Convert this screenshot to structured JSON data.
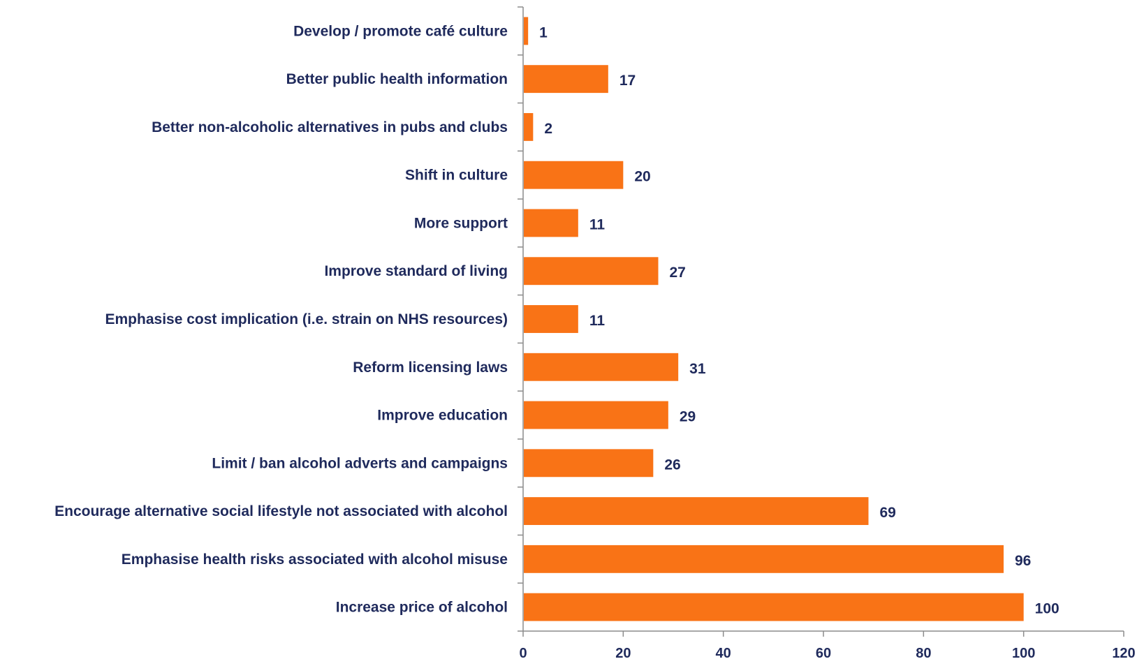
{
  "chart_data": {
    "type": "bar",
    "orientation": "horizontal",
    "categories": [
      "Develop / promote café culture",
      "Better public health information",
      "Better non-alcoholic alternatives in pubs and clubs",
      "Shift in culture",
      "More support",
      "Improve standard of living",
      "Emphasise cost implication (i.e. strain on NHS resources)",
      "Reform licensing laws",
      "Improve education",
      "Limit / ban alcohol adverts and campaigns",
      "Encourage alternative social lifestyle not associated with alcohol",
      "Emphasise health risks associated with alcohol misuse",
      "Increase price of alcohol"
    ],
    "values": [
      1,
      17,
      2,
      20,
      11,
      27,
      11,
      31,
      29,
      26,
      69,
      96,
      100
    ],
    "title": "",
    "xlabel": "",
    "ylabel": "",
    "xlim": [
      0,
      120
    ],
    "x_ticks": [
      0,
      20,
      40,
      60,
      80,
      100,
      120
    ],
    "grid": false,
    "legend": "none",
    "data_labels": true
  },
  "colors": {
    "bar": "#f97316",
    "text": "#1f2a5c",
    "axis": "#8c8c8c"
  }
}
